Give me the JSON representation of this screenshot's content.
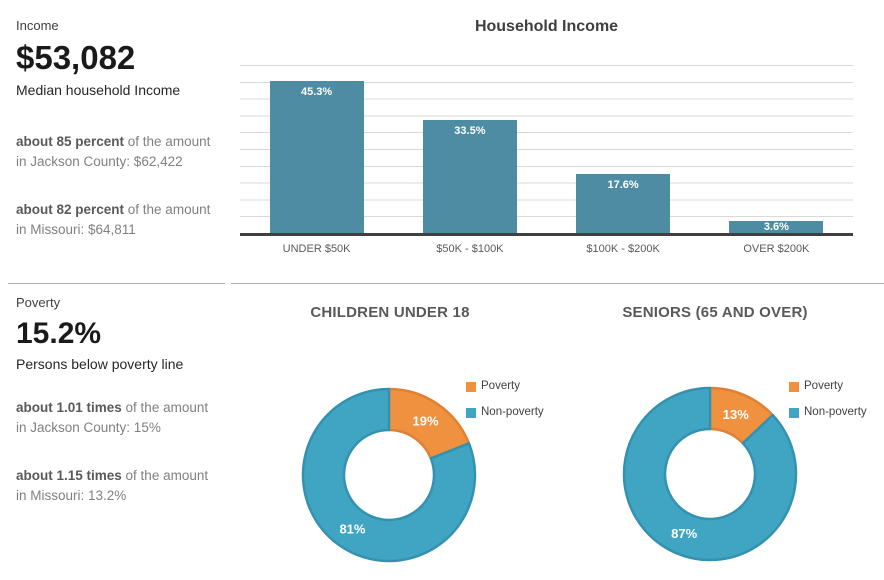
{
  "sidebar": {
    "income": {
      "section_label": "Income",
      "value": "$53,082",
      "value_caption": "Median household Income",
      "notes": [
        {
          "bold": "about 85 percent",
          "rest": " of the amount",
          "line2": "in Jackson County: $62,422"
        },
        {
          "bold": "about 82 percent",
          "rest": " of the amount",
          "line2": "in Missouri: $64,811"
        }
      ]
    },
    "poverty": {
      "section_label": "Poverty",
      "value": "15.2%",
      "value_caption": "Persons below poverty line",
      "notes": [
        {
          "bold": "about 1.01 times",
          "rest": " of the amount",
          "line2": "in Jackson County: 15%"
        },
        {
          "bold": "about 1.15 times",
          "rest": " of the amount",
          "line2": "in Missouri: 13.2%"
        }
      ]
    }
  },
  "chart_data": [
    {
      "type": "bar",
      "title": "Household Income",
      "categories": [
        "UNDER $50K",
        "$50K - $100K",
        "$100K - $200K",
        "OVER $200K"
      ],
      "values": [
        45.3,
        33.5,
        17.6,
        3.6
      ],
      "value_labels": [
        "45.3%",
        "33.5%",
        "17.6%",
        "3.6%"
      ],
      "xlabel": "",
      "ylabel": "",
      "ylim": [
        0,
        50
      ],
      "grid": true,
      "bar_color": "#4e8ca4",
      "gridline_color": "#d9d9d9",
      "axis_color": "#404040"
    },
    {
      "type": "pie",
      "subtype": "donut",
      "title": "CHILDREN UNDER 18",
      "labels": [
        "Poverty",
        "Non-poverty"
      ],
      "values": [
        19,
        81
      ],
      "value_labels": [
        "19%",
        "81%"
      ],
      "colors": [
        "#f0913f",
        "#3fa5c3"
      ],
      "border_colors": [
        "#de8134",
        "#3492b0"
      ],
      "legend_position": "right"
    },
    {
      "type": "pie",
      "subtype": "donut",
      "title": "SENIORS (65 AND OVER)",
      "labels": [
        "Poverty",
        "Non-poverty"
      ],
      "values": [
        13,
        87
      ],
      "value_labels": [
        "13%",
        "87%"
      ],
      "colors": [
        "#f0913f",
        "#3fa5c3"
      ],
      "border_colors": [
        "#de8134",
        "#3492b0"
      ],
      "legend_position": "right"
    }
  ]
}
